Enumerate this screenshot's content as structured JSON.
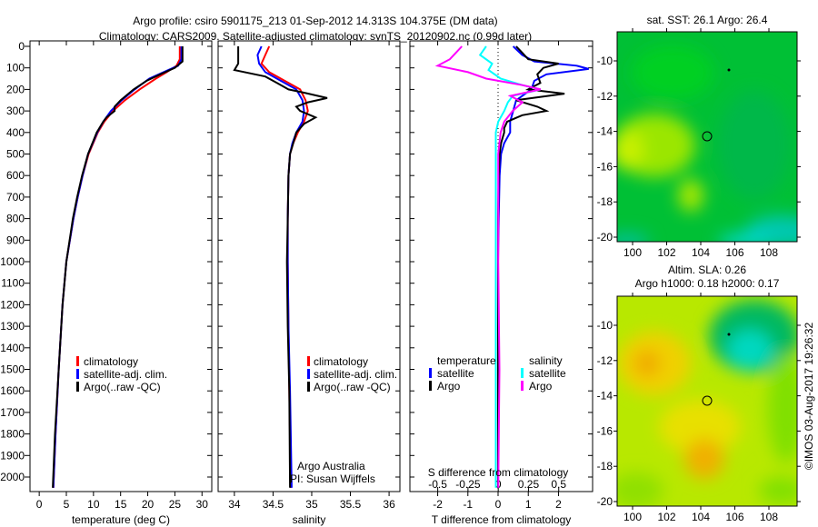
{
  "title": {
    "line1": "Argo profile: csiro 5901175_213 01-Sep-2012 14.313S 104.375E (DM data)",
    "line2": "Climatology: CARS2009. Satellite-adjusted climatology: synTS_20120902.nc (0.99d later)"
  },
  "colors": {
    "climatology": "#ff0000",
    "satellite": "#0000ff",
    "argo": "#000000",
    "s_satellite": "#00ffff",
    "s_argo": "#ff00ff"
  },
  "chart_data": [
    {
      "type": "line",
      "name": "temperature",
      "xlabel": "temperature (deg C)",
      "ylabel": "",
      "xlim": [
        -1.7,
        31.8
      ],
      "ylim": [
        2070,
        0
      ],
      "xticks": [
        0,
        5,
        10,
        15,
        20,
        25,
        30
      ],
      "yticks": [
        0,
        100,
        200,
        300,
        400,
        500,
        600,
        700,
        800,
        900,
        1000,
        1100,
        1200,
        1300,
        1400,
        1500,
        1600,
        1700,
        1800,
        1900,
        2000
      ],
      "legend": [
        "climatology",
        "satellite-adj. clim.",
        "Argo(..raw -QC)"
      ],
      "series": [
        {
          "name": "climatology",
          "depth": [
            0,
            60,
            90,
            120,
            150,
            200,
            250,
            300,
            350,
            400,
            500,
            600,
            700,
            800,
            1000,
            1200,
            1500,
            1800,
            2050
          ],
          "values": [
            25.9,
            25.9,
            25.3,
            23.5,
            21.5,
            18.5,
            15.8,
            13.6,
            12.0,
            10.8,
            9.1,
            8.0,
            7.1,
            6.3,
            5.0,
            4.3,
            3.6,
            3.0,
            2.6
          ]
        },
        {
          "name": "satellite-adj. clim.",
          "depth": [
            0,
            60,
            90,
            110,
            150,
            200,
            250,
            300,
            350,
            400,
            500,
            600,
            700,
            800,
            1000,
            1200,
            1500,
            1800,
            2050
          ],
          "values": [
            26.2,
            26.2,
            25.6,
            23.8,
            20.3,
            17.6,
            15.2,
            13.2,
            11.8,
            10.7,
            9.0,
            8.0,
            7.1,
            6.3,
            5.0,
            4.3,
            3.6,
            3.0,
            2.6
          ]
        },
        {
          "name": "Argo(..raw -QC)",
          "depth": [
            0,
            70,
            100,
            130,
            160,
            200,
            250,
            280,
            300,
            330,
            350,
            400,
            500,
            600,
            700,
            800,
            1000,
            1200,
            1500,
            1800,
            2050
          ],
          "values": [
            26.4,
            26.4,
            25.0,
            22.3,
            19.8,
            17.4,
            15.0,
            13.9,
            13.9,
            12.4,
            11.8,
            10.6,
            9.0,
            7.9,
            7.0,
            6.2,
            5.0,
            4.3,
            3.6,
            2.9,
            2.5
          ]
        }
      ]
    },
    {
      "type": "line",
      "name": "salinity",
      "xlabel": "salinity",
      "xlim": [
        33.79,
        36.14
      ],
      "ylim": [
        2070,
        0
      ],
      "xticks": [
        34,
        34.5,
        35,
        35.5,
        36
      ],
      "legend": [
        "climatology",
        "satellite-adj. clim.",
        "Argo(..raw -QC)"
      ],
      "series": [
        {
          "name": "climatology",
          "depth": [
            0,
            40,
            80,
            120,
            160,
            200,
            250,
            300,
            350,
            400,
            450,
            500,
            600,
            800,
            1000,
            1300,
            1600,
            2050
          ],
          "values": [
            34.45,
            34.4,
            34.35,
            34.45,
            34.65,
            34.85,
            34.92,
            34.95,
            34.9,
            34.82,
            34.76,
            34.72,
            34.7,
            34.69,
            34.69,
            34.7,
            34.71,
            34.73
          ]
        },
        {
          "name": "satellite-adj. clim.",
          "depth": [
            0,
            40,
            80,
            120,
            160,
            200,
            250,
            300,
            350,
            400,
            450,
            500,
            600,
            800,
            1000,
            1300,
            1600,
            2050
          ],
          "values": [
            34.35,
            34.3,
            34.32,
            34.4,
            34.6,
            34.8,
            34.88,
            34.9,
            34.88,
            34.8,
            34.75,
            34.72,
            34.7,
            34.69,
            34.69,
            34.7,
            34.72,
            34.74
          ]
        },
        {
          "name": "Argo(..raw -QC)",
          "depth": [
            0,
            40,
            80,
            110,
            140,
            170,
            200,
            215,
            240,
            260,
            280,
            300,
            330,
            360,
            400,
            450,
            500,
            600,
            800,
            1000,
            1300,
            1600,
            2050
          ],
          "values": [
            34.05,
            34.05,
            34.05,
            34.0,
            34.4,
            34.55,
            34.7,
            34.9,
            35.2,
            34.95,
            34.8,
            34.85,
            35.05,
            34.9,
            34.8,
            34.76,
            34.72,
            34.7,
            34.69,
            34.68,
            34.69,
            34.71,
            34.72
          ]
        }
      ]
    },
    {
      "type": "line",
      "name": "difference",
      "xlabel": "T difference from climatology",
      "x2label": "S difference from climatology",
      "xlim": [
        -2.92,
        3.13
      ],
      "x2lim": [
        -0.73,
        0.78
      ],
      "ylim": [
        2070,
        0
      ],
      "xticks": [
        -2,
        -1,
        0,
        1,
        2
      ],
      "x2ticks": [
        "-0.5",
        "-0.25",
        "0",
        "0.25",
        "0.5"
      ],
      "x2tick_values": [
        -0.5,
        -0.25,
        0,
        0.25,
        0.5
      ],
      "legend": {
        "temperature_header": "temperature",
        "salinity_header": "salinity",
        "t_satellite": "satellite",
        "t_argo": "Argo",
        "s_satellite": "satellite",
        "s_argo": "Argo"
      },
      "series": [
        {
          "name": "T satellite",
          "axis": "T",
          "depth": [
            0,
            40,
            70,
            90,
            105,
            130,
            160,
            200,
            250,
            300,
            350,
            400,
            450,
            500,
            600,
            800,
            1000,
            1500,
            2050
          ],
          "values": [
            0.5,
            0.8,
            1.2,
            2.6,
            3.0,
            1.6,
            1.2,
            1.1,
            0.6,
            0.5,
            0.4,
            0.4,
            0.2,
            0.1,
            0.05,
            0.02,
            0.0,
            0.0,
            0.0
          ]
        },
        {
          "name": "T Argo",
          "axis": "T",
          "depth": [
            0,
            30,
            60,
            80,
            100,
            130,
            170,
            200,
            220,
            250,
            280,
            300,
            320,
            350,
            380,
            400,
            450,
            500,
            600,
            800,
            1000,
            1500,
            2050
          ],
          "values": [
            0.6,
            0.8,
            1.0,
            2.0,
            1.5,
            1.3,
            1.4,
            1.0,
            2.2,
            0.6,
            1.3,
            1.6,
            0.8,
            0.3,
            0.2,
            0.2,
            0.1,
            0.05,
            0.02,
            0.0,
            0.0,
            0.0,
            0.0
          ]
        },
        {
          "name": "S satellite",
          "axis": "S",
          "depth": [
            0,
            40,
            80,
            110,
            150,
            180,
            200,
            230,
            260,
            300,
            350,
            400,
            500,
            700,
            1000,
            1500,
            2050
          ],
          "values": [
            -0.1,
            -0.15,
            -0.05,
            -0.08,
            0.02,
            0.2,
            0.35,
            0.12,
            0.08,
            0.05,
            0.0,
            -0.02,
            -0.02,
            -0.02,
            -0.02,
            -0.02,
            -0.02
          ]
        },
        {
          "name": "S Argo",
          "axis": "S",
          "depth": [
            0,
            30,
            60,
            90,
            120,
            150,
            180,
            200,
            230,
            260,
            300,
            350,
            400,
            500,
            700,
            1000,
            1500,
            2050
          ],
          "values": [
            -0.3,
            -0.35,
            -0.4,
            -0.5,
            -0.25,
            -0.1,
            0.2,
            0.35,
            0.1,
            0.2,
            0.12,
            0.05,
            0.02,
            0.0,
            0.0,
            0.0,
            0.01,
            0.0
          ]
        }
      ]
    }
  ],
  "annotations": {
    "owner": "Argo Australia",
    "pi": "PI: Susan Wijffels"
  },
  "maps": {
    "sst": {
      "title": "sat. SST: 26.1 Argo: 26.4",
      "xticks": [
        "100",
        "102",
        "104",
        "106",
        "108"
      ],
      "yticks": [
        "-10",
        "-12",
        "-14",
        "-16",
        "-18",
        "-20"
      ],
      "float_lon": 104.375,
      "float_lat": -14.313
    },
    "sla": {
      "title1": "Altim. SLA: 0.26",
      "title2": "Argo h1000: 0.18 h2000: 0.17",
      "xticks": [
        "100",
        "102",
        "104",
        "106",
        "108"
      ],
      "yticks": [
        "-10",
        "-12",
        "-14",
        "-16",
        "-18",
        "-20"
      ],
      "float_lon": 104.375,
      "float_lat": -14.313
    }
  },
  "footer": {
    "copyright": "©IMOS 03-Aug-2017 19:26:32"
  }
}
